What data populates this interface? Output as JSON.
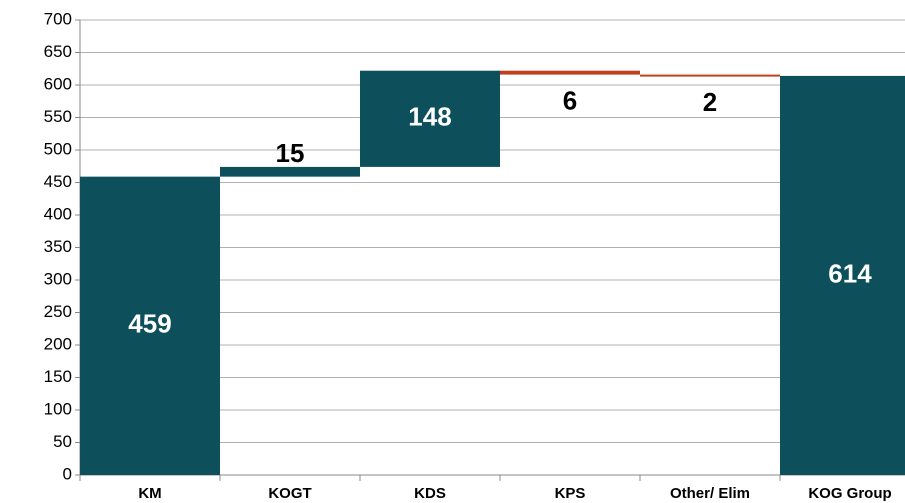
{
  "chart_data": {
    "type": "waterfall",
    "categories": [
      "KM",
      "KOGT",
      "KDS",
      "KPS",
      "Other/ Elim",
      "KOG Group"
    ],
    "values": [
      459,
      15,
      148,
      -6,
      -2,
      614
    ],
    "value_labels": [
      "459",
      "15",
      "148",
      "6",
      "2",
      "614"
    ],
    "colors": {
      "increase": "#0d4f5b",
      "decrease": "#c0401e",
      "total": "#0d4f5b"
    },
    "ylim": [
      0,
      700
    ],
    "yticks": [
      0,
      50,
      100,
      150,
      200,
      250,
      300,
      350,
      400,
      450,
      500,
      550,
      600,
      650,
      700
    ],
    "grid": true
  }
}
